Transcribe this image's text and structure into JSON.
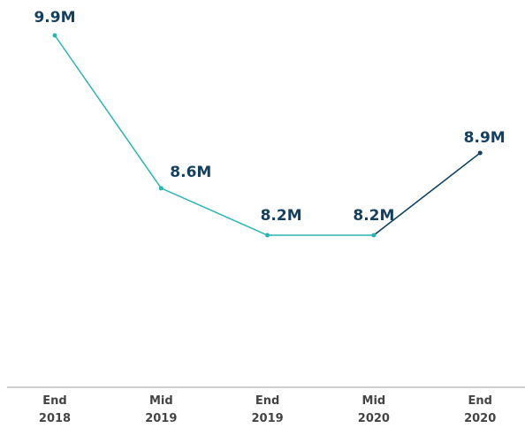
{
  "chart_data": {
    "type": "line",
    "categories": [
      "End 2018",
      "Mid 2019",
      "End 2019",
      "Mid 2020",
      "End 2020"
    ],
    "series": [
      {
        "color": "#2bb3b3",
        "values": [
          9.9,
          8.6,
          8.2,
          8.2,
          8.9
        ],
        "value_labels": [
          "9.9M",
          "8.6M",
          "8.2M",
          "8.2M",
          "8.9M"
        ],
        "point_colors": [
          "#2bb3b3",
          "#2bb3b3",
          "#2bb3b3",
          "#2bb3b3",
          "#17405e"
        ]
      }
    ]
  }
}
